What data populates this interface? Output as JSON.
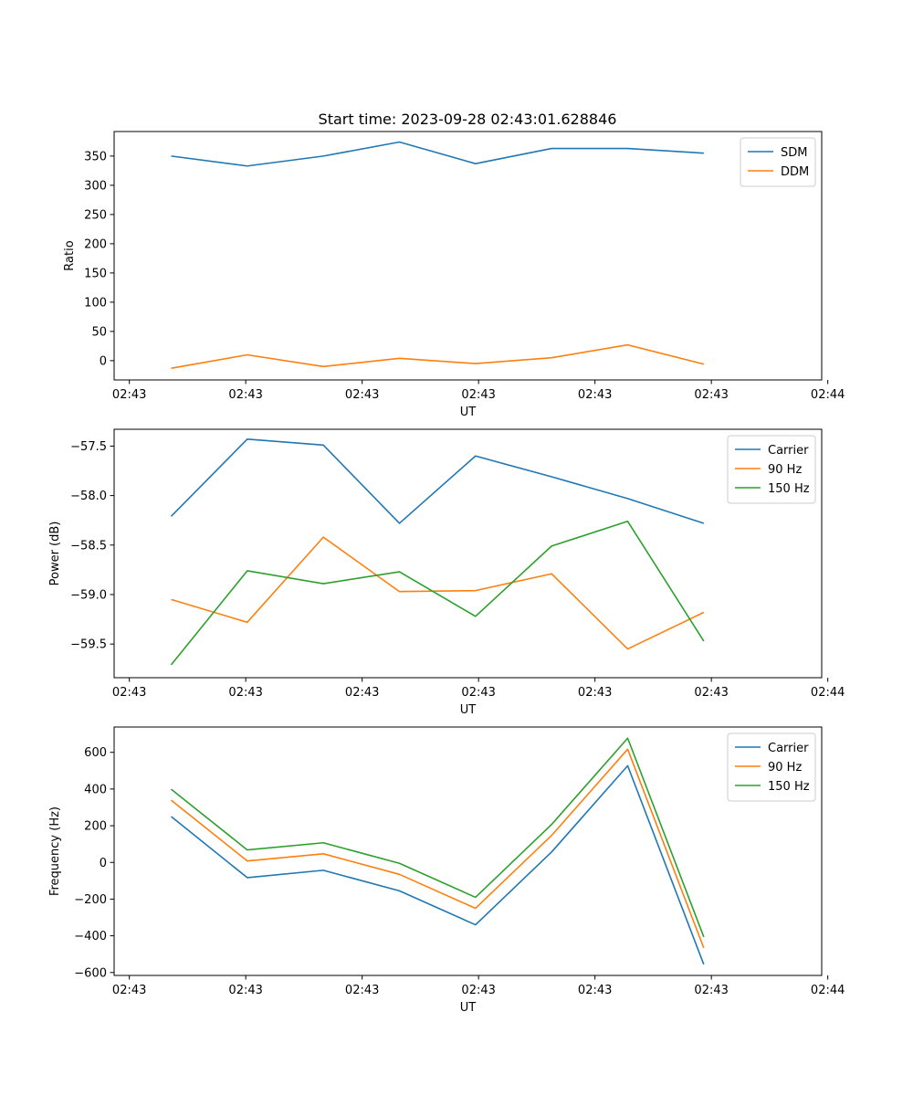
{
  "figure_title": "Start time: 2023-09-28 02:43:01.628846",
  "chart_data": [
    {
      "type": "line",
      "title": "Start time: 2023-09-28 02:43:01.628846",
      "xlabel": "UT",
      "ylabel": "Ratio",
      "x": [
        0,
        1,
        2,
        3,
        4,
        5,
        6,
        7
      ],
      "x_tick_labels": [
        "02:43",
        "02:43",
        "02:43",
        "02:43",
        "02:43",
        "02:43",
        "02:44"
      ],
      "ylim": [
        -33,
        392
      ],
      "yticks": [
        0,
        50,
        100,
        150,
        200,
        250,
        300,
        350
      ],
      "legend": "top-right",
      "series": [
        {
          "name": "SDM",
          "color": "#1f77b4",
          "values": [
            350,
            333,
            350,
            374,
            337,
            363,
            363,
            355
          ]
        },
        {
          "name": "DDM",
          "color": "#ff7f0e",
          "values": [
            -13,
            10,
            -10,
            4,
            -5,
            5,
            27,
            -6
          ]
        }
      ]
    },
    {
      "type": "line",
      "title": "",
      "xlabel": "UT",
      "ylabel": "Power (dB)",
      "x": [
        0,
        1,
        2,
        3,
        4,
        5,
        6,
        7
      ],
      "x_tick_labels": [
        "02:43",
        "02:43",
        "02:43",
        "02:43",
        "02:43",
        "02:43",
        "02:44"
      ],
      "ylim": [
        -59.84,
        -57.33
      ],
      "yticks": [
        -59.5,
        -59.0,
        -58.5,
        -58.0,
        -57.5
      ],
      "ytick_labels": [
        "−59.5",
        "−59.0",
        "−58.5",
        "−58.0",
        "−57.5"
      ],
      "legend": "top-right",
      "series": [
        {
          "name": "Carrier",
          "color": "#1f77b4",
          "values": [
            -58.21,
            -57.43,
            -57.49,
            -58.28,
            -57.6,
            -57.81,
            -58.03,
            -58.28
          ]
        },
        {
          "name": "90 Hz",
          "color": "#ff7f0e",
          "values": [
            -59.05,
            -59.28,
            -58.42,
            -58.97,
            -58.96,
            -58.79,
            -59.55,
            -59.18
          ]
        },
        {
          "name": "150 Hz",
          "color": "#2ca02c",
          "values": [
            -59.71,
            -58.76,
            -58.89,
            -58.77,
            -59.22,
            -58.51,
            -58.26,
            -59.47
          ]
        }
      ]
    },
    {
      "type": "line",
      "title": "",
      "xlabel": "UT",
      "ylabel": "Frequency (Hz)",
      "x": [
        0,
        1,
        2,
        3,
        4,
        5,
        6,
        7
      ],
      "x_tick_labels": [
        "02:43",
        "02:43",
        "02:43",
        "02:43",
        "02:43",
        "02:43",
        "02:44"
      ],
      "ylim": [
        -616,
        738
      ],
      "yticks": [
        -600,
        -400,
        -200,
        0,
        200,
        400,
        600
      ],
      "ytick_labels": [
        "−600",
        "−400",
        "−200",
        "0",
        "200",
        "400",
        "600"
      ],
      "legend": "top-right",
      "series": [
        {
          "name": "Carrier",
          "color": "#1f77b4",
          "values": [
            250,
            -83,
            -43,
            -155,
            -340,
            57,
            527,
            -556
          ]
        },
        {
          "name": "90 Hz",
          "color": "#ff7f0e",
          "values": [
            339,
            8,
            47,
            -65,
            -250,
            147,
            617,
            -466
          ]
        },
        {
          "name": "150 Hz",
          "color": "#2ca02c",
          "values": [
            399,
            68,
            107,
            -5,
            -190,
            207,
            677,
            -406
          ]
        }
      ]
    }
  ]
}
